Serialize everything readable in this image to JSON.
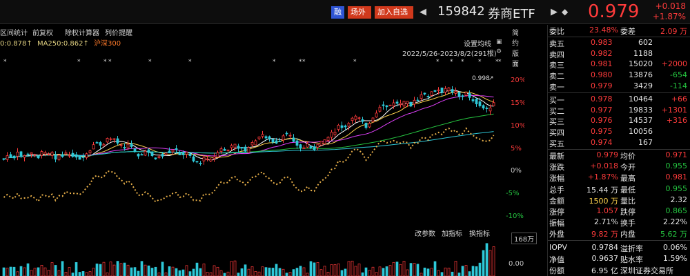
{
  "header": {
    "badge_rong": "融",
    "badge_changwai": "场外",
    "badge_add": "加入自选",
    "code": "159842",
    "name": "券商ETF",
    "price": "0.979",
    "change": "+0.018",
    "change_pct": "+1.87%"
  },
  "toolbar": {
    "items": [
      "区间统计",
      "前复权",
      "除权计算器",
      "列价提醒"
    ],
    "mode": "简约版面"
  },
  "ma_line": [
    "0:0.878↑",
    "MA250:0.862↑",
    "沪深300"
  ],
  "chart_settings": "设置均线",
  "chart_range": "2022/5/26-2023/8/2(291根)",
  "peak_label": "0.998",
  "pct_axis": [
    "20%",
    "15%",
    "10%",
    "5%",
    "0%",
    "-5%",
    "-10%"
  ],
  "volume": {
    "tools": [
      "改参数",
      "加指标",
      "换指标"
    ],
    "max": "168万",
    "zero": "0.00"
  },
  "colors": {
    "up": "#ff3b3b",
    "down": "#25c440",
    "accent_blue": "#2f55d4",
    "accent_orange": "#d1391c"
  },
  "order_book": {
    "weibi_label": "委比",
    "weibi": "23.48%",
    "weicha_label": "委差",
    "weicha": "2.09 万",
    "asks": [
      {
        "label": "卖五",
        "price": "0.983",
        "vol": "602",
        "delta": ""
      },
      {
        "label": "卖四",
        "price": "0.982",
        "vol": "1188",
        "delta": ""
      },
      {
        "label": "卖三",
        "price": "0.981",
        "vol": "15020",
        "delta": "+2000"
      },
      {
        "label": "卖二",
        "price": "0.980",
        "vol": "13876",
        "delta": "-654"
      },
      {
        "label": "卖一",
        "price": "0.979",
        "vol": "3429",
        "delta": "-114"
      }
    ],
    "bids": [
      {
        "label": "买一",
        "price": "0.978",
        "vol": "10464",
        "delta": "+66"
      },
      {
        "label": "买二",
        "price": "0.977",
        "vol": "19833",
        "delta": "+1301"
      },
      {
        "label": "买三",
        "price": "0.976",
        "vol": "14537",
        "delta": "+316"
      },
      {
        "label": "买四",
        "price": "0.975",
        "vol": "10056",
        "delta": ""
      },
      {
        "label": "买五",
        "price": "0.974",
        "vol": "167",
        "delta": ""
      }
    ]
  },
  "stats": [
    {
      "l1": "最新",
      "v1": "0.979",
      "c1": "red",
      "l2": "均价",
      "v2": "0.971",
      "c2": "red"
    },
    {
      "l1": "涨跌",
      "v1": "+0.018",
      "c1": "red",
      "l2": "今开",
      "v2": "0.955",
      "c2": "green"
    },
    {
      "l1": "涨幅",
      "v1": "+1.87%",
      "c1": "red",
      "l2": "最高",
      "v2": "0.981",
      "c2": "red"
    },
    {
      "l1": "总手",
      "v1": "15.44 万",
      "c1": "white",
      "l2": "最低",
      "v2": "0.955",
      "c2": "green"
    },
    {
      "l1": "金额",
      "v1": "1500 万",
      "c1": "yellow",
      "l2": "量比",
      "v2": "2.32",
      "c2": "white"
    },
    {
      "l1": "涨停",
      "v1": "1.057",
      "c1": "red",
      "l2": "跌停",
      "v2": "0.865",
      "c2": "green"
    },
    {
      "l1": "振幅",
      "v1": "2.71%",
      "c1": "white",
      "l2": "换手",
      "v2": "2.22%",
      "c2": "white"
    },
    {
      "l1": "外盘",
      "v1": "9.82 万",
      "c1": "red",
      "l2": "内盘",
      "v2": "5.62 万",
      "c2": "green"
    }
  ],
  "info": [
    {
      "l1": "IOPV",
      "v1": "0.9784",
      "l2": "溢折率",
      "v2": "0.06%"
    },
    {
      "l1": "净值",
      "v1": "0.9637",
      "l2": "贴水率",
      "v2": "1.59%"
    },
    {
      "l1": "份额",
      "v1": "6.95 亿",
      "l2": "深圳证券交易所",
      "v2": ""
    }
  ]
}
